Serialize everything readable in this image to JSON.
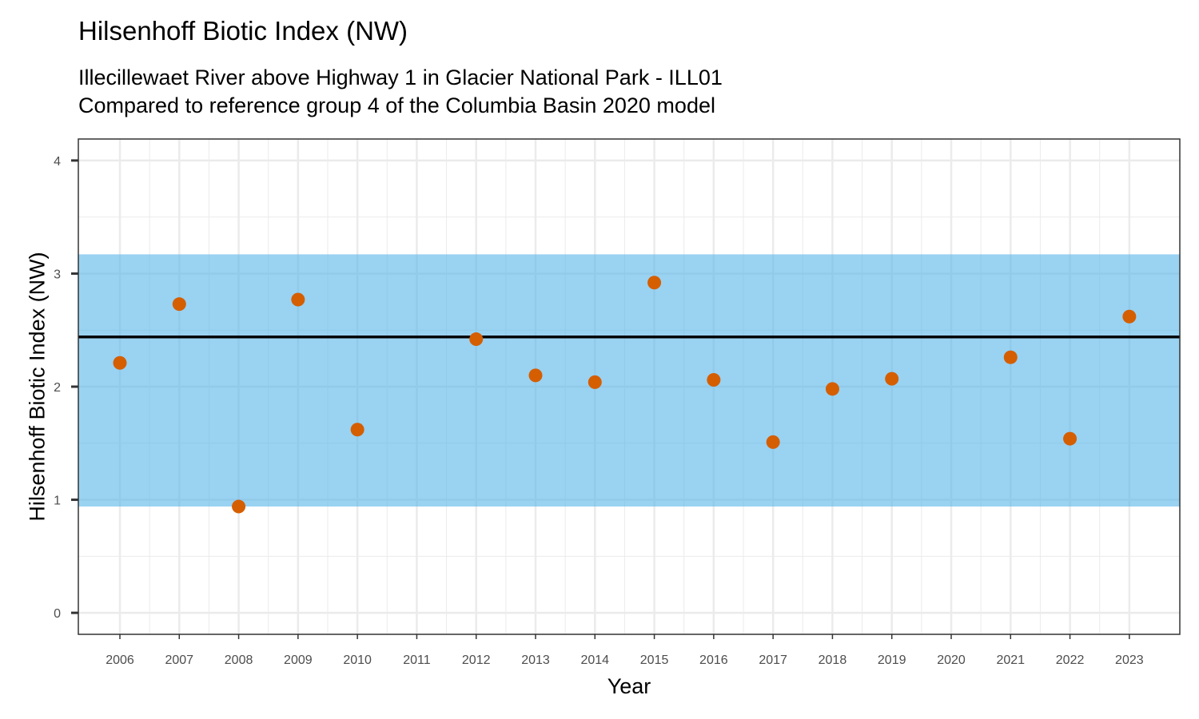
{
  "chart_data": {
    "type": "scatter",
    "title": "Hilsenhoff Biotic Index (NW)",
    "subtitle": [
      "Illecillewaet River above Highway 1 in Glacier National Park - ILL01",
      "Compared to reference group 4 of the Columbia Basin 2020 model"
    ],
    "xlabel": "Year",
    "ylabel": "Hilsenhoff Biotic Index (NW)",
    "xlim": [
      2005.3,
      2023.85
    ],
    "ylim": [
      -0.19,
      4.19
    ],
    "x_ticks": [
      2006,
      2007,
      2008,
      2009,
      2010,
      2011,
      2012,
      2013,
      2014,
      2015,
      2016,
      2017,
      2018,
      2019,
      2020,
      2021,
      2022,
      2023
    ],
    "y_ticks": [
      0,
      1,
      2,
      3,
      4
    ],
    "grid": true,
    "reference_band": {
      "low": 0.94,
      "high": 3.17,
      "color": "#56B4E9"
    },
    "reference_line": {
      "value": 2.44,
      "color": "#000000"
    },
    "point_color": "#D55E00",
    "points": [
      {
        "x": 2006,
        "y": 2.21
      },
      {
        "x": 2007,
        "y": 2.73
      },
      {
        "x": 2008,
        "y": 0.94
      },
      {
        "x": 2009,
        "y": 2.77
      },
      {
        "x": 2010,
        "y": 1.62
      },
      {
        "x": 2012,
        "y": 2.42
      },
      {
        "x": 2013,
        "y": 2.1
      },
      {
        "x": 2014,
        "y": 2.04
      },
      {
        "x": 2015,
        "y": 2.92
      },
      {
        "x": 2016,
        "y": 2.06
      },
      {
        "x": 2017,
        "y": 1.51
      },
      {
        "x": 2018,
        "y": 1.98
      },
      {
        "x": 2019,
        "y": 2.07
      },
      {
        "x": 2021,
        "y": 2.26
      },
      {
        "x": 2022,
        "y": 1.54
      },
      {
        "x": 2023,
        "y": 2.62
      }
    ]
  }
}
